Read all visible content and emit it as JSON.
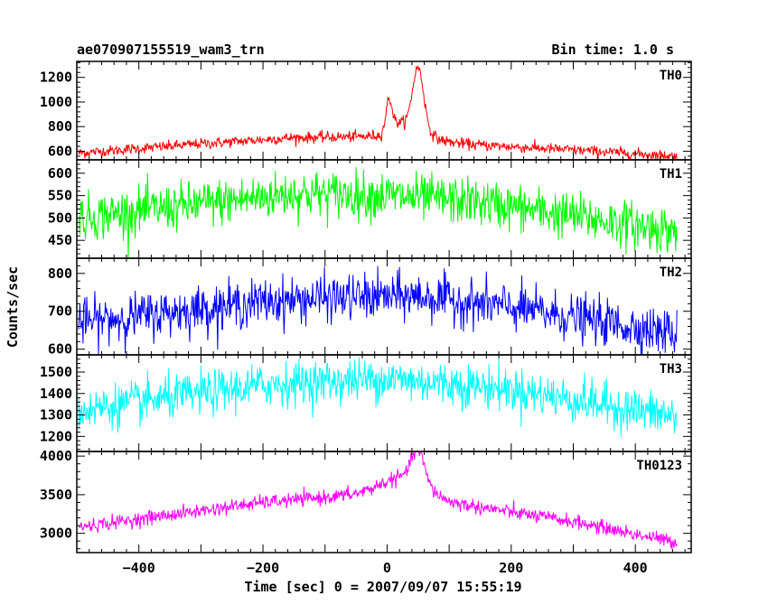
{
  "header": {
    "title": "ae070907155519_wam3_trn",
    "bin_time": "Bin time: 1.0 s"
  },
  "axes": {
    "xlabel": "Time [sec] 0 = 2007/09/07 15:55:19",
    "ylabel": "Counts/sec"
  },
  "chart_data": {
    "type": "line",
    "title": "ae070907155519_wam3_trn",
    "xlabel": "Time [sec] 0 = 2007/09/07 15:55:19",
    "ylabel": "Counts/sec",
    "xlim": [
      -500,
      490
    ],
    "x_ticks": [
      -400,
      -200,
      0,
      200,
      400
    ],
    "x_data_range": [
      -497,
      467
    ],
    "bin_time_s": 1.0,
    "panels": [
      {
        "name": "TH0",
        "color": "#ff0000",
        "ylim": [
          530,
          1330
        ],
        "y_ticks": [
          600,
          800,
          1000,
          1200
        ],
        "noise_sd": 22,
        "baseline": [
          [
            -497,
            585
          ],
          [
            -300,
            660
          ],
          [
            -150,
            710
          ],
          [
            -20,
            720
          ],
          [
            10,
            690
          ],
          [
            45,
            700
          ],
          [
            80,
            680
          ],
          [
            150,
            650
          ],
          [
            300,
            610
          ],
          [
            467,
            560
          ]
        ],
        "features": [
          {
            "center": 3,
            "width": 5,
            "height": 250
          },
          {
            "center": 15,
            "width": 12,
            "height": 80
          },
          {
            "center": 50,
            "width": 9,
            "height": 500
          },
          {
            "center": 40,
            "width": 25,
            "height": 90
          }
        ]
      },
      {
        "name": "TH1",
        "color": "#00ff00",
        "ylim": [
          410,
          630
        ],
        "y_ticks": [
          450,
          500,
          550,
          600
        ],
        "noise_sd": 26,
        "baseline": [
          [
            -497,
            500
          ],
          [
            -150,
            555
          ],
          [
            0,
            550
          ],
          [
            150,
            535
          ],
          [
            467,
            470
          ]
        ],
        "features": []
      },
      {
        "name": "TH2",
        "color": "#0000ff",
        "ylim": [
          585,
          840
        ],
        "y_ticks": [
          600,
          700,
          800
        ],
        "noise_sd": 30,
        "baseline": [
          [
            -497,
            670
          ],
          [
            -200,
            725
          ],
          [
            -100,
            735
          ],
          [
            50,
            740
          ],
          [
            200,
            710
          ],
          [
            467,
            640
          ]
        ],
        "features": []
      },
      {
        "name": "TH3",
        "color": "#00ffff",
        "ylim": [
          1130,
          1580
        ],
        "y_ticks": [
          1200,
          1300,
          1400,
          1500
        ],
        "noise_sd": 50,
        "baseline": [
          [
            -497,
            1320
          ],
          [
            -200,
            1440
          ],
          [
            0,
            1470
          ],
          [
            200,
            1420
          ],
          [
            467,
            1290
          ]
        ],
        "features": []
      },
      {
        "name": "TH0123",
        "color": "#ff00ff",
        "ylim": [
          2750,
          4060
        ],
        "y_ticks": [
          3000,
          3500,
          4000
        ],
        "noise_sd": 45,
        "baseline": [
          [
            -497,
            3080
          ],
          [
            -200,
            3400
          ],
          [
            -50,
            3500
          ],
          [
            40,
            3600
          ],
          [
            100,
            3400
          ],
          [
            300,
            3150
          ],
          [
            467,
            2880
          ]
        ],
        "features": [
          {
            "center": 50,
            "width": 10,
            "height": 400
          },
          {
            "center": 25,
            "width": 35,
            "height": 150
          }
        ]
      }
    ]
  }
}
